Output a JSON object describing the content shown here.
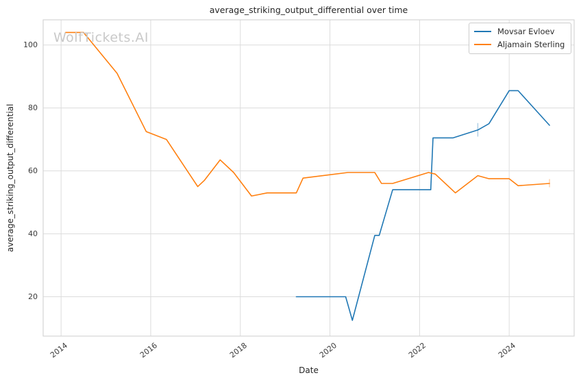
{
  "figure": {
    "background": "#ffffff"
  },
  "watermark": {
    "text": "WolfTickets.AI",
    "color": "#c9c9c9"
  },
  "legend": {
    "position": "upper right",
    "items": [
      {
        "label": "Movsar Evloev",
        "color": "#1f77b4"
      },
      {
        "label": "Aljamain Sterling",
        "color": "#ff7f0e"
      }
    ]
  },
  "chart_data": {
    "type": "line",
    "title": "average_striking_output_differential over time",
    "xlabel": "Date",
    "ylabel": "average_striking_output_differential",
    "xlim": [
      2013.6,
      2025.45
    ],
    "ylim": [
      7.5,
      108
    ],
    "xticks": [
      "2014",
      "2016",
      "2018",
      "2020",
      "2022",
      "2024"
    ],
    "xtick_values": [
      2014,
      2016,
      2018,
      2020,
      2022,
      2024
    ],
    "yticks": [
      "20",
      "40",
      "60",
      "80",
      "100"
    ],
    "ytick_values": [
      20,
      40,
      60,
      80,
      100
    ],
    "grid": true,
    "grid_color": "#dcdcdc",
    "border_color": "#d4d4d4",
    "series": [
      {
        "name": "Movsar Evloev",
        "color": "#1f77b4",
        "points": [
          [
            2019.25,
            20
          ],
          [
            2020.35,
            20
          ],
          [
            2020.5,
            12.5
          ],
          [
            2021.0,
            39.5
          ],
          [
            2021.1,
            39.5
          ],
          [
            2021.4,
            54
          ],
          [
            2022.25,
            54
          ],
          [
            2022.3,
            70.5
          ],
          [
            2022.75,
            70.5
          ],
          [
            2023.3,
            73
          ],
          [
            2023.55,
            75
          ],
          [
            2024.0,
            85.5
          ],
          [
            2024.2,
            85.5
          ],
          [
            2024.9,
            74.5
          ]
        ]
      },
      {
        "name": "Aljamain Sterling",
        "color": "#ff7f0e",
        "points": [
          [
            2014.1,
            104
          ],
          [
            2014.5,
            104
          ],
          [
            2015.25,
            91
          ],
          [
            2015.9,
            72.5
          ],
          [
            2016.35,
            70
          ],
          [
            2017.05,
            55
          ],
          [
            2017.2,
            57
          ],
          [
            2017.55,
            63.5
          ],
          [
            2017.85,
            59.5
          ],
          [
            2018.25,
            52
          ],
          [
            2018.6,
            53
          ],
          [
            2019.25,
            53
          ],
          [
            2019.4,
            57.7
          ],
          [
            2020.4,
            59.5
          ],
          [
            2021.0,
            59.5
          ],
          [
            2021.15,
            56
          ],
          [
            2021.4,
            56
          ],
          [
            2022.2,
            59.5
          ],
          [
            2022.35,
            59
          ],
          [
            2022.8,
            53
          ],
          [
            2023.3,
            58.5
          ],
          [
            2023.55,
            57.5
          ],
          [
            2024.0,
            57.5
          ],
          [
            2024.2,
            55.3
          ],
          [
            2024.9,
            56
          ]
        ]
      }
    ],
    "error_bars": [
      {
        "series": "Movsar Evloev",
        "x": 2023.3,
        "y_low": 70.9,
        "y_high": 75.2
      },
      {
        "series": "Aljamain Sterling",
        "x": 2024.9,
        "y_low": 54.8,
        "y_high": 57.4
      }
    ]
  }
}
